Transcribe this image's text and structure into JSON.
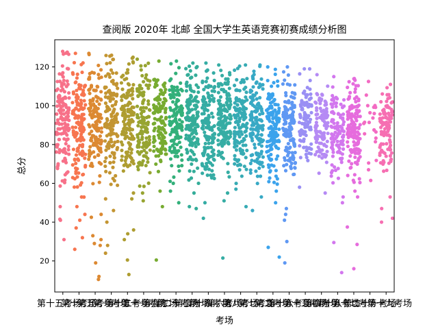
{
  "chart_data": {
    "type": "scatter",
    "title": "查阅版 2020年 北邮  全国大学生英语竞赛初赛成绩分析图",
    "xlabel": "考场",
    "ylabel": "总分",
    "ylim": [
      4,
      134
    ],
    "yticks": [
      20,
      40,
      60,
      80,
      100,
      120
    ],
    "grid": false,
    "legend": "none",
    "categories": [
      {
        "label": "第十五考场",
        "color": "#f77189",
        "n": 150,
        "min": 31,
        "max": 128,
        "center": 93,
        "outliers": [
          41,
          41.5,
          48,
          31
        ]
      },
      {
        "label": "第十考场",
        "color": "#f7754f",
        "n": 160,
        "min": 26,
        "max": 127,
        "center": 91,
        "outliers": [
          26,
          32,
          37,
          41,
          44,
          48
        ]
      },
      {
        "label": "第五考场",
        "color": "#dc8932",
        "n": 150,
        "min": 10.5,
        "max": 127,
        "center": 92,
        "outliers": [
          12,
          10.5,
          19,
          28,
          29,
          31,
          33,
          42.5,
          44
        ]
      },
      {
        "label": "第一考场",
        "color": "#c39532",
        "n": 150,
        "min": 24,
        "max": 126,
        "center": 90,
        "outliers": [
          24,
          28,
          40,
          46,
          52,
          59
        ]
      },
      {
        "label": "第十二考场",
        "color": "#ae9d31",
        "n": 150,
        "min": 13,
        "max": 125,
        "center": 93,
        "outliers": [
          13,
          20.5,
          31,
          34,
          36,
          52,
          55
        ]
      },
      {
        "label": "第十一考场",
        "color": "#97a431",
        "n": 140,
        "min": 51,
        "max": 124,
        "center": 92,
        "outliers": [
          51,
          55
        ]
      },
      {
        "label": "第九考场",
        "color": "#77ab31",
        "n": 130,
        "min": 20.5,
        "max": 123,
        "center": 92,
        "outliers": [
          20.5,
          48,
          56
        ]
      },
      {
        "label": "第二十考场",
        "color": "#33b07a",
        "n": 140,
        "min": 50,
        "max": 123,
        "center": 93,
        "outliers": [
          50,
          56,
          60
        ]
      },
      {
        "label": "第三考场",
        "color": "#34ad99",
        "n": 150,
        "min": 47,
        "max": 122,
        "center": 92,
        "outliers": [
          47,
          48,
          55
        ]
      },
      {
        "label": "第十四考场",
        "color": "#35aca4",
        "n": 150,
        "min": 42,
        "max": 122,
        "center": 91,
        "outliers": [
          42,
          50
        ]
      },
      {
        "label": "第六考场",
        "color": "#36ada4",
        "n": 150,
        "min": 21.5,
        "max": 121,
        "center": 92,
        "outliers": [
          21.5,
          51,
          55
        ]
      },
      {
        "label": "第八考场",
        "color": "#37abb4",
        "n": 140,
        "min": 48,
        "max": 121,
        "center": 91,
        "outliers": [
          48,
          57
        ]
      },
      {
        "label": "第七考场",
        "color": "#38a9c5",
        "n": 140,
        "min": 46,
        "max": 121,
        "center": 90,
        "outliers": [
          46,
          53
        ]
      },
      {
        "label": "第二考场",
        "color": "#3ba3ec",
        "n": 140,
        "min": 22,
        "max": 120,
        "center": 88,
        "outliers": [
          22,
          27,
          50,
          56
        ]
      },
      {
        "label": "第十六考场",
        "color": "#5f98f3",
        "n": 140,
        "min": 19,
        "max": 120,
        "center": 90,
        "outliers": [
          19,
          30,
          41,
          44,
          47
        ]
      },
      {
        "label": "第十三考场",
        "color": "#9a8ff4",
        "n": 100,
        "min": 58,
        "max": 119,
        "center": 93,
        "outliers": [
          58
        ]
      },
      {
        "label": "第四考场",
        "color": "#b58af4",
        "n": 110,
        "min": 55,
        "max": 116,
        "center": 91,
        "outliers": [
          55
        ]
      },
      {
        "label": "第十八考场",
        "color": "#d277ee",
        "n": 110,
        "min": 14,
        "max": 115,
        "center": 86,
        "outliers": [
          14,
          29.5,
          50,
          53
        ]
      },
      {
        "label": "第十七考场",
        "color": "#e66cdd",
        "n": 150,
        "min": 16,
        "max": 114,
        "center": 87,
        "outliers": [
          16,
          28.5,
          37.5,
          53,
          56
        ]
      },
      {
        "label": "第二十一考场",
        "color": "#f36bc3",
        "n": 22,
        "min": 61.5,
        "max": 112.5,
        "center": 90,
        "outliers": [
          61.5,
          67
        ]
      },
      {
        "label": "第十九考场",
        "color": "#f66fb2",
        "n": 110,
        "min": 40,
        "max": 111,
        "center": 88,
        "outliers": [
          40,
          42,
          47,
          53
        ]
      }
    ]
  }
}
